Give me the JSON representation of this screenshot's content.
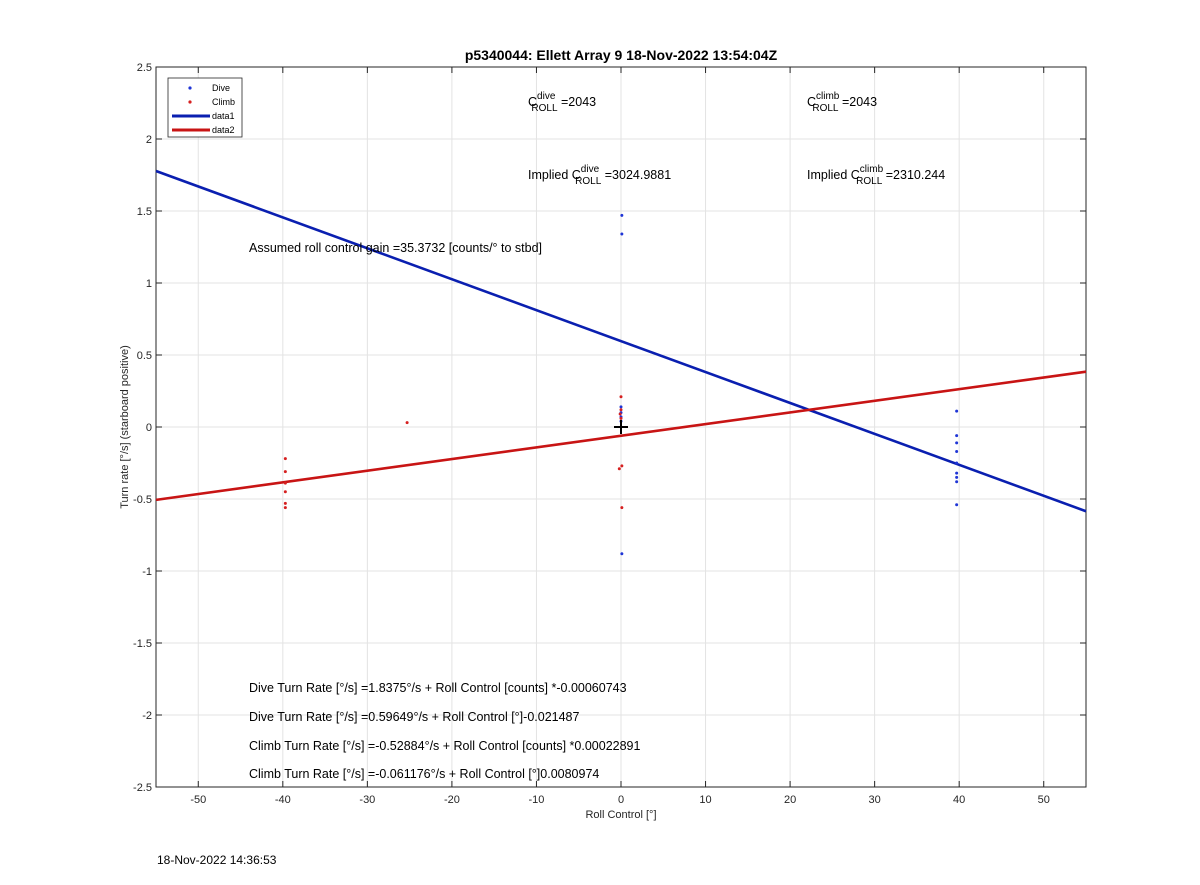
{
  "chart_data": {
    "type": "scatter",
    "title": "p5340044: Ellett Array 9 18-Nov-2022 13:54:04Z",
    "xlabel": "Roll Control [°]",
    "ylabel": "Turn rate [°/s] (starboard positive)",
    "xlim": [
      -55,
      55
    ],
    "ylim": [
      -2.5,
      2.5
    ],
    "xticks": [
      -50,
      -40,
      -30,
      -20,
      -10,
      0,
      10,
      20,
      30,
      40,
      50
    ],
    "yticks": [
      -2.5,
      -2,
      -1.5,
      -1,
      -0.5,
      0,
      0.5,
      1,
      1.5,
      2,
      2.5
    ],
    "grid": true,
    "legend_placement": "top-left",
    "legend": [
      {
        "label": "Dive",
        "kind": "marker",
        "color": "#1f35d6"
      },
      {
        "label": "Climb",
        "kind": "marker",
        "color": "#d62020"
      },
      {
        "label": "data1",
        "kind": "line",
        "color": "#0a1fb0"
      },
      {
        "label": "data2",
        "kind": "line",
        "color": "#c81414"
      }
    ],
    "series": [
      {
        "name": "Dive",
        "kind": "scatter",
        "color": "#1f35d6",
        "x": [
          0.1,
          0.1,
          0.0,
          0.0,
          0.0,
          0.0,
          0.1,
          39.7,
          39.7,
          39.7,
          39.7,
          39.7,
          39.7,
          39.7,
          39.7,
          39.7
        ],
        "y": [
          1.47,
          1.34,
          0.14,
          0.1,
          0.07,
          0.04,
          -0.88,
          0.11,
          -0.06,
          -0.11,
          -0.17,
          -0.25,
          -0.32,
          -0.35,
          -0.38,
          -0.54
        ]
      },
      {
        "name": "Climb",
        "kind": "scatter",
        "color": "#d62020",
        "x": [
          -39.7,
          -39.7,
          -39.7,
          -39.7,
          -39.7,
          -39.7,
          -25.3,
          0.0,
          0.0,
          -0.1,
          0.0,
          0.1,
          -0.2,
          0.1
        ],
        "y": [
          -0.22,
          -0.31,
          -0.39,
          -0.45,
          -0.53,
          -0.56,
          0.03,
          0.21,
          0.12,
          0.09,
          0.06,
          -0.27,
          -0.29,
          -0.56
        ]
      },
      {
        "name": "data1",
        "kind": "line",
        "color": "#0a1fb0",
        "x": [
          -55,
          55
        ],
        "y": [
          1.778,
          -0.585
        ]
      },
      {
        "name": "data2",
        "kind": "line",
        "color": "#c81414",
        "x": [
          -55,
          55
        ],
        "y": [
          -0.506,
          0.384
        ]
      }
    ],
    "marker_cross": {
      "x": 0,
      "y": 0
    }
  },
  "annotations": {
    "c_dive": {
      "pre": "C",
      "sup": "dive",
      "sub": "ROLL",
      "value": " =2043"
    },
    "c_climb": {
      "pre": "C",
      "sup": "climb",
      "sub": "ROLL",
      "value": " =2043"
    },
    "implied_dive": {
      "pre": "Implied C",
      "sup": "dive",
      "sub": "ROLL",
      "value": " =3024.9881"
    },
    "implied_climb": {
      "pre": "Implied C",
      "sup": "climb",
      "sub": "ROLL",
      "value": " =2310.244"
    },
    "gain": "Assumed roll control gain =35.3732 [counts/° to stbd]",
    "eq1": "Dive Turn Rate [°/s] =1.8375°/s + Roll Control [counts] *-0.00060743",
    "eq2": "Dive Turn Rate [°/s] =0.59649°/s + Roll Control [°]-0.021487",
    "eq3": "Climb Turn Rate [°/s] =-0.52884°/s + Roll Control [counts] *0.00022891",
    "eq4": "Climb Turn Rate [°/s] =-0.061176°/s + Roll Control [°]0.0080974"
  },
  "timestamp": "18-Nov-2022 14:36:53"
}
